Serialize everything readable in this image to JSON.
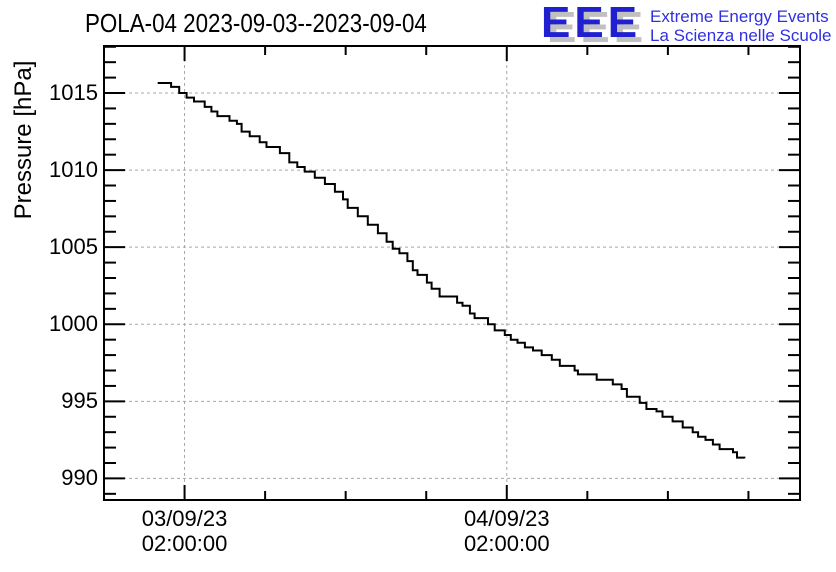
{
  "header": {
    "title": "POLA-04 2023-09-03--2023-09-04",
    "logo": {
      "acronym": "EEE",
      "line1": "Extreme Energy Events",
      "line2": "La Scienza nelle Scuole",
      "acronym_color": "#2020d0",
      "acronym_shadow_color": "#c0c0c0",
      "text_color": "#3030e0"
    }
  },
  "chart_data": {
    "type": "line",
    "style": "step-after",
    "title": "POLA-04 2023-09-03--2023-09-04",
    "xlabel": "",
    "ylabel": "Pressure [hPa]",
    "ylim": [
      988.6,
      1018.05
    ],
    "xlim_hours_from_2023_09_03_0000": [
      -4.0,
      47.84
    ],
    "grid": true,
    "legend": false,
    "line_color": "#000000",
    "grid_color": "#a8a8a8",
    "frame_color": "#000000",
    "y_major_ticks": [
      990,
      995,
      1000,
      1005,
      1010,
      1015
    ],
    "y_tick_labels": [
      "990",
      "995",
      "1000",
      "1005",
      "1010",
      "1015"
    ],
    "y_minor_step": 1,
    "x_minor_ticks_hours": [
      2,
      8,
      14,
      20,
      26,
      32,
      38,
      44
    ],
    "x_major_ticks_hours": [
      2,
      26
    ],
    "x_tick_labels": [
      {
        "hours": 2,
        "line1": "03/09/23",
        "line2": "02:00:00"
      },
      {
        "hours": 26,
        "line1": "04/09/23",
        "line2": "02:00:00"
      }
    ],
    "series": [
      {
        "name": "pressure",
        "units": "hPa",
        "points_hours_hpa": [
          [
            0.0,
            1015.65
          ],
          [
            1.0,
            1015.4
          ],
          [
            1.6,
            1015.0
          ],
          [
            2.15,
            1014.7
          ],
          [
            2.7,
            1014.45
          ],
          [
            3.5,
            1014.1
          ],
          [
            4.0,
            1013.8
          ],
          [
            4.45,
            1013.5
          ],
          [
            5.35,
            1013.2
          ],
          [
            5.9,
            1013.0
          ],
          [
            6.25,
            1012.5
          ],
          [
            6.85,
            1012.2
          ],
          [
            7.6,
            1011.8
          ],
          [
            8.1,
            1011.5
          ],
          [
            9.1,
            1011.1
          ],
          [
            9.8,
            1010.5
          ],
          [
            10.4,
            1010.2
          ],
          [
            10.95,
            1009.9
          ],
          [
            11.7,
            1009.5
          ],
          [
            12.45,
            1009.1
          ],
          [
            13.2,
            1008.6
          ],
          [
            13.8,
            1008.1
          ],
          [
            14.15,
            1007.55
          ],
          [
            14.9,
            1007.0
          ],
          [
            15.65,
            1006.45
          ],
          [
            16.4,
            1005.9
          ],
          [
            17.05,
            1005.35
          ],
          [
            17.5,
            1004.9
          ],
          [
            18.0,
            1004.6
          ],
          [
            18.6,
            1004.1
          ],
          [
            19.0,
            1003.5
          ],
          [
            19.35,
            1003.2
          ],
          [
            20.05,
            1002.7
          ],
          [
            20.4,
            1002.3
          ],
          [
            21.0,
            1001.8
          ],
          [
            22.3,
            1001.4
          ],
          [
            22.7,
            1001.2
          ],
          [
            23.25,
            1000.7
          ],
          [
            23.6,
            1000.4
          ],
          [
            24.6,
            1000.0
          ],
          [
            25.1,
            999.6
          ],
          [
            25.85,
            999.3
          ],
          [
            26.3,
            999.0
          ],
          [
            26.8,
            998.8
          ],
          [
            27.35,
            998.5
          ],
          [
            27.95,
            998.3
          ],
          [
            28.6,
            998.0
          ],
          [
            29.35,
            997.7
          ],
          [
            29.95,
            997.3
          ],
          [
            31.05,
            997.0
          ],
          [
            31.3,
            996.75
          ],
          [
            32.7,
            996.4
          ],
          [
            33.9,
            996.1
          ],
          [
            34.55,
            995.8
          ],
          [
            34.95,
            995.3
          ],
          [
            35.9,
            994.9
          ],
          [
            36.4,
            994.5
          ],
          [
            37.15,
            994.35
          ],
          [
            37.6,
            994.0
          ],
          [
            38.35,
            993.7
          ],
          [
            39.1,
            993.3
          ],
          [
            39.85,
            993.0
          ],
          [
            40.25,
            992.7
          ],
          [
            40.8,
            992.5
          ],
          [
            41.35,
            992.2
          ],
          [
            41.85,
            991.9
          ],
          [
            42.85,
            991.7
          ],
          [
            43.15,
            991.35
          ],
          [
            43.7,
            991.3
          ]
        ]
      }
    ]
  }
}
